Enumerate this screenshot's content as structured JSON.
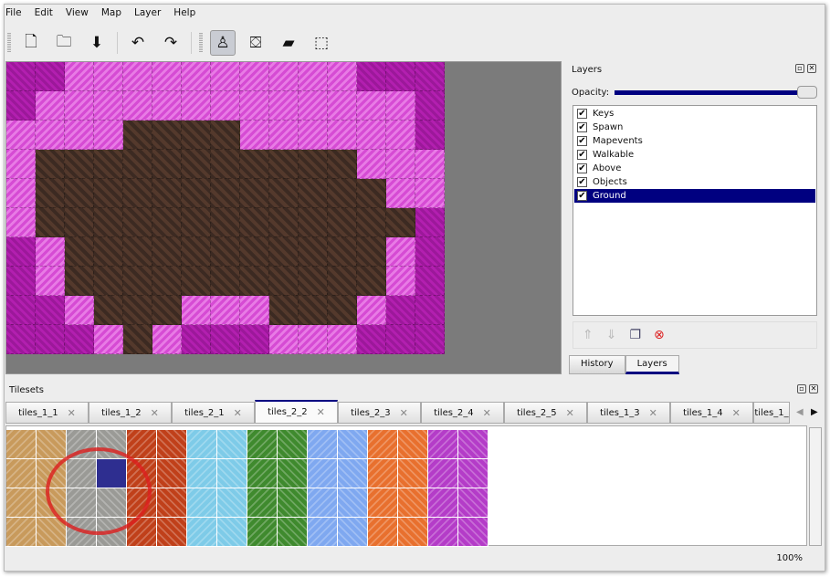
{
  "menu": [
    "File",
    "Edit",
    "View",
    "Map",
    "Layer",
    "Help"
  ],
  "toolbar": [
    {
      "name": "new-icon",
      "glyph": "🗋"
    },
    {
      "name": "open-icon",
      "glyph": "🗀"
    },
    {
      "name": "save-icon",
      "glyph": "⬇"
    },
    {
      "name": "undo-icon",
      "glyph": "↶"
    },
    {
      "name": "redo-icon",
      "glyph": "↷"
    },
    {
      "name": "stamp-brush-icon",
      "glyph": "♙",
      "active": true
    },
    {
      "name": "bucket-fill-icon",
      "glyph": "⛋"
    },
    {
      "name": "eraser-icon",
      "glyph": "▰"
    },
    {
      "name": "rect-select-icon",
      "glyph": "⬚"
    }
  ],
  "map": {
    "rows": [
      "PPMMMMMMMMMMPPP",
      "PMMMMMMMMMMMMMP",
      "MMMMDDDDMMMMMMP",
      "MDDDDDDDDDDDMMM",
      "MDDDDDDDDDDDDMM",
      "MDDDDDDDDDDDDDP",
      "PMDDDDDDDDDDDMP",
      "PMDDDDDDDDDDDMP",
      "PPMDDDMMMDDDMPP",
      "PPPMDMPPPMMMPPP"
    ]
  },
  "layers_panel": {
    "title": "Layers",
    "opacity_label": "Opacity:",
    "opacity": 1.0,
    "layers": [
      {
        "name": "Keys",
        "visible": true
      },
      {
        "name": "Spawn",
        "visible": true
      },
      {
        "name": "Mapevents",
        "visible": true
      },
      {
        "name": "Walkable",
        "visible": true
      },
      {
        "name": "Above",
        "visible": true
      },
      {
        "name": "Objects",
        "visible": true
      },
      {
        "name": "Ground",
        "visible": true,
        "selected": true
      }
    ],
    "tabs": [
      "History",
      "Layers"
    ],
    "active_tab": "Layers"
  },
  "tilesets": {
    "title": "Tilesets",
    "tabs": [
      "tiles_1_1",
      "tiles_1_2",
      "tiles_2_1",
      "tiles_2_2",
      "tiles_2_3",
      "tiles_2_4",
      "tiles_2_5",
      "tiles_1_3",
      "tiles_1_4",
      "tiles_1_"
    ],
    "active_tab": "tiles_2_2",
    "column_colors": [
      "#c89a5c",
      "#c89a5c",
      "#9a9a96",
      "#9a9a96",
      "#c0401a",
      "#c0401a",
      "#7ecbe8",
      "#7ecbe8",
      "#3f8a2e",
      "#3f8a2e",
      "#7fa8f0",
      "#7fa8f0",
      "#e8702e",
      "#e8702e",
      "#b43cc8",
      "#b43cc8"
    ],
    "selection_color": "#2e2e90"
  },
  "status": {
    "zoom": "100%"
  }
}
